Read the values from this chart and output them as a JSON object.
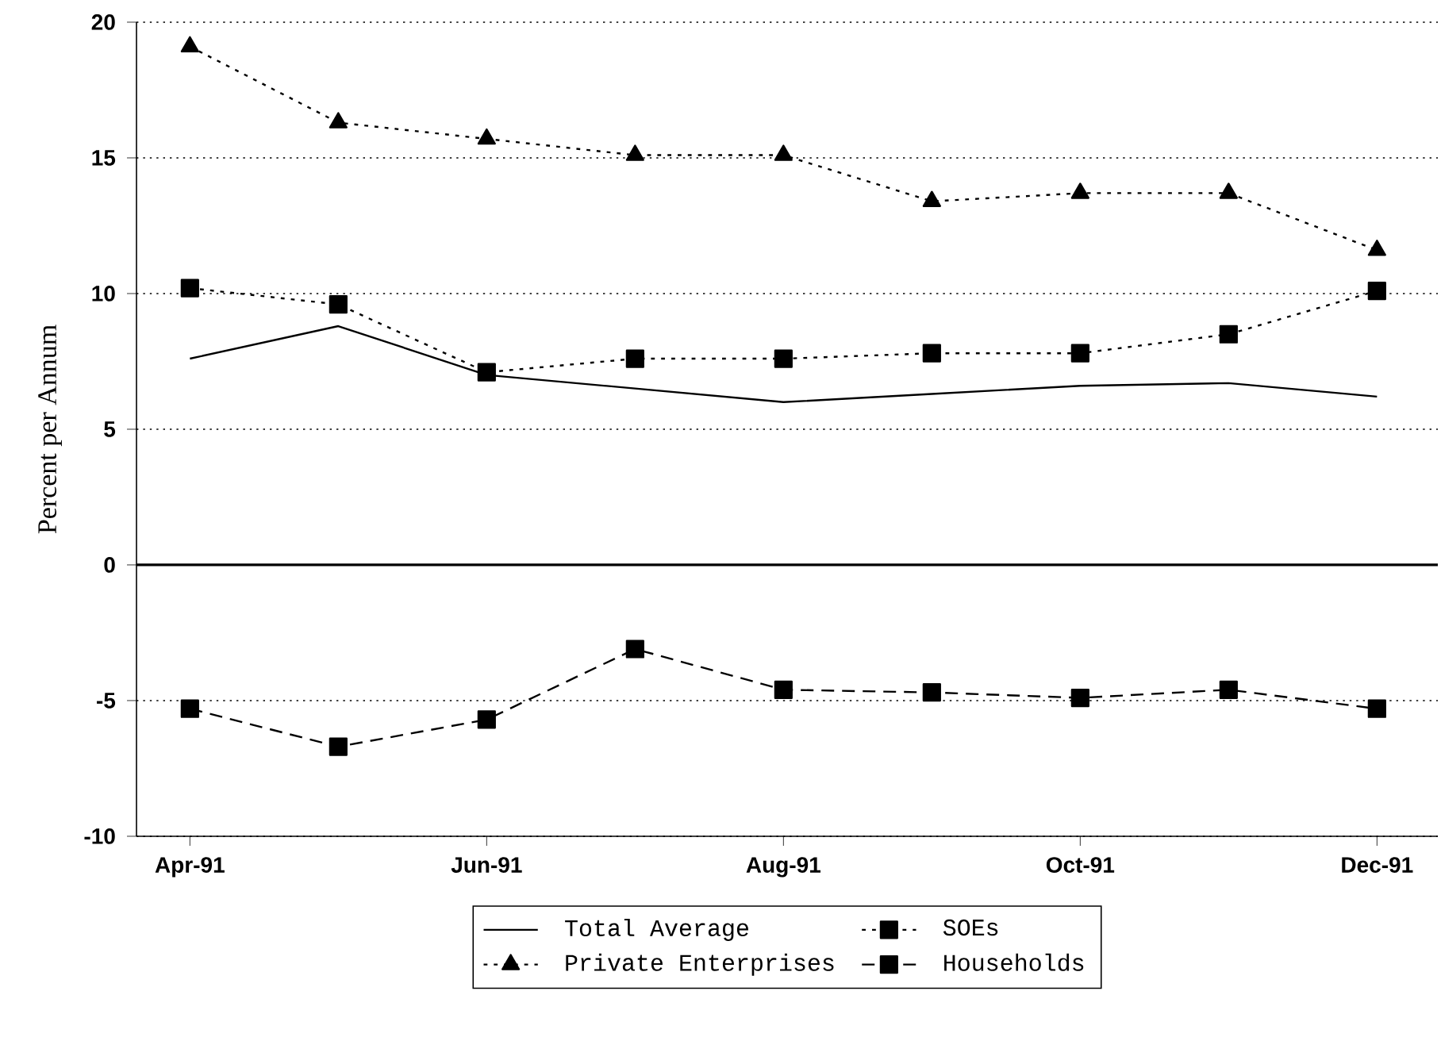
{
  "chart_data": {
    "type": "line",
    "ylabel": "Percent per Annum",
    "categories": [
      "Apr-91",
      null,
      "Jun-91",
      null,
      "Aug-91",
      null,
      "Oct-91",
      null,
      "Dec-91"
    ],
    "ylim": [
      -10,
      20
    ],
    "yticks": [
      -10,
      -5,
      0,
      5,
      10,
      15,
      20
    ],
    "grid": "y",
    "legend": "bottom",
    "ref_lines": [
      {
        "axis": "y",
        "value": 0,
        "color": "#000000"
      }
    ],
    "series": [
      {
        "name": "Total Average",
        "color": "#000000",
        "marker": "none",
        "line_style": "solid",
        "values": [
          7.6,
          8.8,
          7.0,
          6.5,
          6.0,
          6.3,
          6.6,
          6.7,
          6.2
        ]
      },
      {
        "name": "SOEs",
        "color": "#000000",
        "marker": "square",
        "line_style": "dotted",
        "values": [
          10.2,
          9.6,
          7.1,
          7.6,
          7.6,
          7.8,
          7.8,
          8.5,
          10.1
        ]
      },
      {
        "name": "Private Enterprises",
        "color": "#000000",
        "marker": "triangle",
        "line_style": "dotted",
        "values": [
          19.1,
          16.3,
          15.7,
          15.1,
          15.1,
          13.4,
          13.7,
          13.7,
          11.6
        ]
      },
      {
        "name": "Households",
        "color": "#000000",
        "marker": "square",
        "line_style": "dashed",
        "values": [
          -5.3,
          -6.7,
          -5.7,
          -3.1,
          -4.6,
          -4.7,
          -4.9,
          -4.6,
          -5.3
        ]
      }
    ]
  }
}
